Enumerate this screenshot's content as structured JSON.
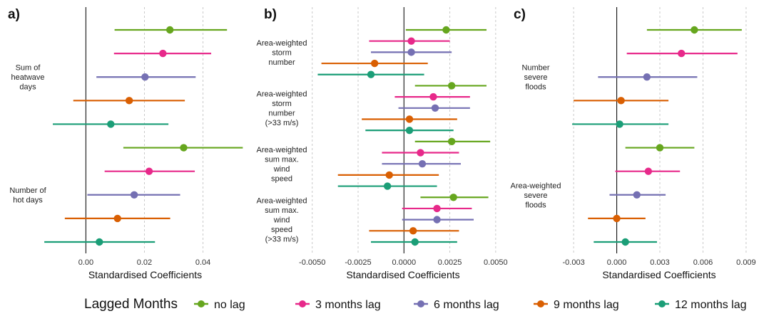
{
  "legend": {
    "title": "Lagged Months",
    "entries": [
      {
        "label": "no lag",
        "color": "#66a61e"
      },
      {
        "label": "3 months lag",
        "color": "#e7298a"
      },
      {
        "label": "6 months lag",
        "color": "#7570b3"
      },
      {
        "label": "9 months lag",
        "color": "#d95f02"
      },
      {
        "label": "12 months lag",
        "color": "#1b9e77"
      }
    ]
  },
  "chart_data": [
    {
      "type": "forest",
      "panel": "a)",
      "xlabel": "Standardised Coefficients",
      "xlim": [
        -0.0135,
        0.054
      ],
      "xticks": [
        0,
        0.02,
        0.04
      ],
      "xtick_labels": [
        "0.00",
        "0.02",
        "0.04"
      ],
      "groups": [
        {
          "label": [
            "Sum of",
            "heatwave",
            "days"
          ],
          "points": [
            {
              "lag": "no lag",
              "estimate": 0.0287,
              "low": 0.0098,
              "high": 0.0482
            },
            {
              "lag": "3 months lag",
              "estimate": 0.0263,
              "low": 0.0096,
              "high": 0.0428
            },
            {
              "lag": "6 months lag",
              "estimate": 0.0202,
              "low": 0.0036,
              "high": 0.0375
            },
            {
              "lag": "9 months lag",
              "estimate": 0.0148,
              "low": -0.0043,
              "high": 0.0338
            },
            {
              "lag": "12 months lag",
              "estimate": 0.0085,
              "low": -0.0113,
              "high": 0.0282
            }
          ]
        },
        {
          "label": [
            "Number of",
            "hot days"
          ],
          "points": [
            {
              "lag": "no lag",
              "estimate": 0.0334,
              "low": 0.0128,
              "high": 0.0536
            },
            {
              "lag": "3 months lag",
              "estimate": 0.0216,
              "low": 0.0064,
              "high": 0.0372
            },
            {
              "lag": "6 months lag",
              "estimate": 0.0165,
              "low": 0.0005,
              "high": 0.0322
            },
            {
              "lag": "9 months lag",
              "estimate": 0.0108,
              "low": -0.0072,
              "high": 0.0288
            },
            {
              "lag": "12 months lag",
              "estimate": 0.0046,
              "low": -0.0142,
              "high": 0.0236
            }
          ]
        }
      ]
    },
    {
      "type": "forest",
      "panel": "b)",
      "xlabel": "Standardised Coefficients",
      "xlim": [
        -0.0053,
        0.0052
      ],
      "xticks": [
        -0.005,
        -0.0025,
        0,
        0.0025,
        0.005
      ],
      "xtick_labels": [
        "-0.0050",
        "-0.0025",
        "0.0000",
        "0.0025",
        "0.0050"
      ],
      "groups": [
        {
          "label": [
            "Area-weighted",
            "storm",
            "number"
          ],
          "points": [
            {
              "lag": "no lag",
              "estimate": 0.0023,
              "low": 0.0001,
              "high": 0.0045
            },
            {
              "lag": "3 months lag",
              "estimate": 0.0004,
              "low": -0.0019,
              "high": 0.0025
            },
            {
              "lag": "6 months lag",
              "estimate": 0.0004,
              "low": -0.0018,
              "high": 0.0026
            },
            {
              "lag": "9 months lag",
              "estimate": -0.0016,
              "low": -0.0045,
              "high": 0.0013
            },
            {
              "lag": "12 months lag",
              "estimate": -0.0018,
              "low": -0.0047,
              "high": 0.0011
            }
          ]
        },
        {
          "label": [
            "Area-weighted",
            "storm",
            "number",
            "(>33 m/s)"
          ],
          "points": [
            {
              "lag": "no lag",
              "estimate": 0.0026,
              "low": 0.0006,
              "high": 0.0045
            },
            {
              "lag": "3 months lag",
              "estimate": 0.0016,
              "low": -0.0005,
              "high": 0.0036
            },
            {
              "lag": "6 months lag",
              "estimate": 0.0017,
              "low": -0.0003,
              "high": 0.0036
            },
            {
              "lag": "9 months lag",
              "estimate": 0.0003,
              "low": -0.0023,
              "high": 0.0029
            },
            {
              "lag": "12 months lag",
              "estimate": 0.0003,
              "low": -0.0021,
              "high": 0.0027
            }
          ]
        },
        {
          "label": [
            "Area-weighted",
            "sum max.",
            "wind",
            "speed"
          ],
          "points": [
            {
              "lag": "no lag",
              "estimate": 0.0026,
              "low": 0.0006,
              "high": 0.0047
            },
            {
              "lag": "3 months lag",
              "estimate": 0.0009,
              "low": -0.0012,
              "high": 0.003
            },
            {
              "lag": "6 months lag",
              "estimate": 0.001,
              "low": -0.0012,
              "high": 0.0031
            },
            {
              "lag": "9 months lag",
              "estimate": -0.0008,
              "low": -0.0036,
              "high": 0.0019
            },
            {
              "lag": "12 months lag",
              "estimate": -0.0009,
              "low": -0.0036,
              "high": 0.0018
            }
          ]
        },
        {
          "label": [
            "Area-weighted",
            "sum max.",
            "wind",
            "speed",
            "(>33 m/s)"
          ],
          "points": [
            {
              "lag": "no lag",
              "estimate": 0.0027,
              "low": 0.0009,
              "high": 0.0046
            },
            {
              "lag": "3 months lag",
              "estimate": 0.0018,
              "low": -0.0001,
              "high": 0.0037
            },
            {
              "lag": "6 months lag",
              "estimate": 0.0018,
              "low": -0.0001,
              "high": 0.0038
            },
            {
              "lag": "9 months lag",
              "estimate": 0.0005,
              "low": -0.0019,
              "high": 0.003
            },
            {
              "lag": "12 months lag",
              "estimate": 0.0006,
              "low": -0.0018,
              "high": 0.0029
            }
          ]
        }
      ]
    },
    {
      "type": "forest",
      "panel": "c)",
      "xlabel": "Standardised Coefficients",
      "xlim": [
        -0.0037,
        0.0096
      ],
      "xticks": [
        -0.003,
        0,
        0.003,
        0.006,
        0.009
      ],
      "xtick_labels": [
        "-0.003",
        "0.000",
        "0.003",
        "0.006",
        "0.009"
      ],
      "groups": [
        {
          "label": [
            "Number",
            "severe",
            "floods"
          ],
          "points": [
            {
              "lag": "no lag",
              "estimate": 0.0054,
              "low": 0.0021,
              "high": 0.0087
            },
            {
              "lag": "3 months lag",
              "estimate": 0.0045,
              "low": 0.0007,
              "high": 0.0084
            },
            {
              "lag": "6 months lag",
              "estimate": 0.0021,
              "low": -0.0013,
              "high": 0.0056
            },
            {
              "lag": "9 months lag",
              "estimate": 0.0003,
              "low": -0.003,
              "high": 0.0036
            },
            {
              "lag": "12 months lag",
              "estimate": 0.0002,
              "low": -0.0031,
              "high": 0.0036
            }
          ]
        },
        {
          "label": [
            "Area-weighted",
            "severe",
            "floods"
          ],
          "points": [
            {
              "lag": "no lag",
              "estimate": 0.003,
              "low": 0.0006,
              "high": 0.0054
            },
            {
              "lag": "3 months lag",
              "estimate": 0.0022,
              "low": -0.0001,
              "high": 0.0044
            },
            {
              "lag": "6 months lag",
              "estimate": 0.0014,
              "low": -0.0005,
              "high": 0.0034
            },
            {
              "lag": "9 months lag",
              "estimate": 0.0,
              "low": -0.002,
              "high": 0.002
            },
            {
              "lag": "12 months lag",
              "estimate": 0.0006,
              "low": -0.0016,
              "high": 0.0028
            }
          ]
        }
      ]
    }
  ]
}
